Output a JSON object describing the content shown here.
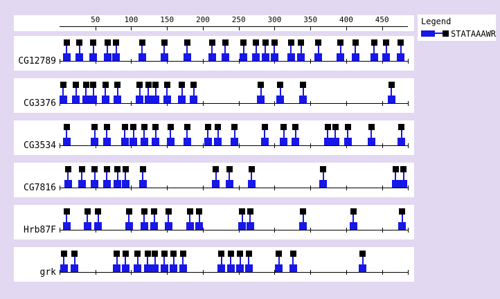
{
  "legend": {
    "title": "Legend",
    "entries": [
      {
        "label": "STATAAAWR",
        "site_color": "#1717E8",
        "flag_color": "#000000"
      }
    ]
  },
  "colors": {
    "background": "#E2D8F2",
    "panel": "#FFFFFF",
    "site_blue": "#1717E8",
    "flag_black": "#000000",
    "axis": "#000000"
  },
  "chart_data": {
    "type": "scatter",
    "title": "",
    "xlabel": "",
    "ylabel": "",
    "x_range": [
      0,
      486
    ],
    "x_ticks": [
      50,
      100,
      150,
      200,
      250,
      300,
      350,
      400,
      450
    ],
    "grid": false,
    "legend_position": "top-right",
    "marker_style": "blue square on baseline with stem to black flag square",
    "series": [
      {
        "name": "CG12789",
        "x": [
          10,
          28,
          47,
          67,
          79,
          115,
          146,
          178,
          213,
          231,
          257,
          274,
          287,
          300,
          323,
          337,
          361,
          392,
          413,
          439,
          456,
          476
        ]
      },
      {
        "name": "CG3376",
        "x": [
          5,
          23,
          37,
          47,
          64,
          81,
          112,
          124,
          134,
          150,
          171,
          187,
          281,
          308,
          340,
          463
        ]
      },
      {
        "name": "CG3534",
        "x": [
          10,
          49,
          66,
          91,
          103,
          118,
          134,
          155,
          178,
          207,
          221,
          244,
          286,
          313,
          329,
          374,
          385,
          402,
          435,
          477
        ]
      },
      {
        "name": "CG7816",
        "x": [
          12,
          31,
          49,
          66,
          81,
          92,
          116,
          218,
          237,
          268,
          368,
          469,
          480
        ]
      },
      {
        "name": "Hrb87F",
        "x": [
          10,
          39,
          54,
          97,
          118,
          132,
          152,
          182,
          195,
          255,
          266,
          340,
          410,
          478
        ]
      },
      {
        "name": "grk",
        "x": [
          6,
          21,
          80,
          92,
          109,
          123,
          133,
          146,
          159,
          172,
          226,
          239,
          252,
          264,
          306,
          326,
          423
        ]
      }
    ]
  }
}
